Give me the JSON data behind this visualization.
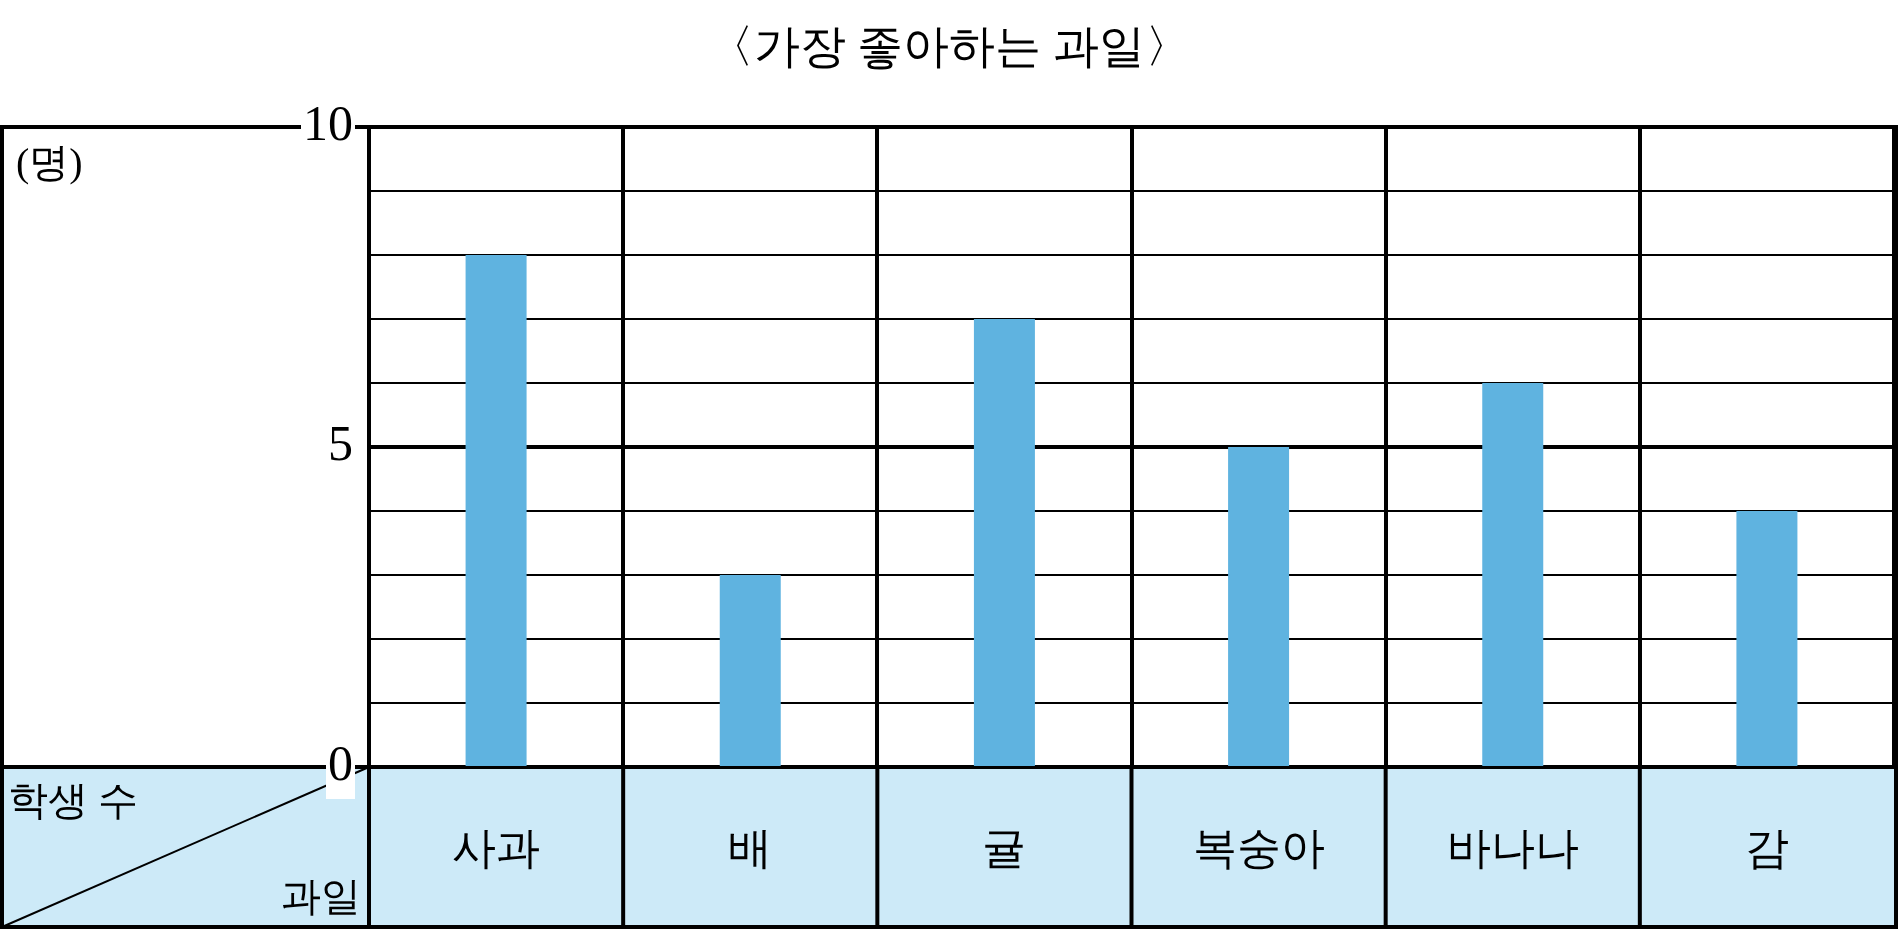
{
  "chart_data": {
    "type": "bar",
    "title": "〈가장 좋아하는 과일〉",
    "xlabel": "과일",
    "ylabel": "학생 수",
    "annotations": [
      "(명)"
    ],
    "categories": [
      "사과",
      "배",
      "귤",
      "복숭아",
      "바나나",
      "감"
    ],
    "values": [
      8,
      3,
      7,
      5,
      6,
      4
    ],
    "color": "#5fb3e0",
    "ylim": [
      0,
      10
    ],
    "yticks": [
      0,
      {
        "value": 1,
        "label": null
      },
      {
        "value": 2,
        "label": null
      },
      {
        "value": 3,
        "label": null
      },
      {
        "value": 4,
        "label": null
      },
      5,
      {
        "value": 6,
        "label": null
      },
      {
        "value": 7,
        "label": null
      },
      {
        "value": 8,
        "label": null
      },
      {
        "value": 9,
        "label": null
      },
      10
    ],
    "grid": true,
    "legend": false
  }
}
